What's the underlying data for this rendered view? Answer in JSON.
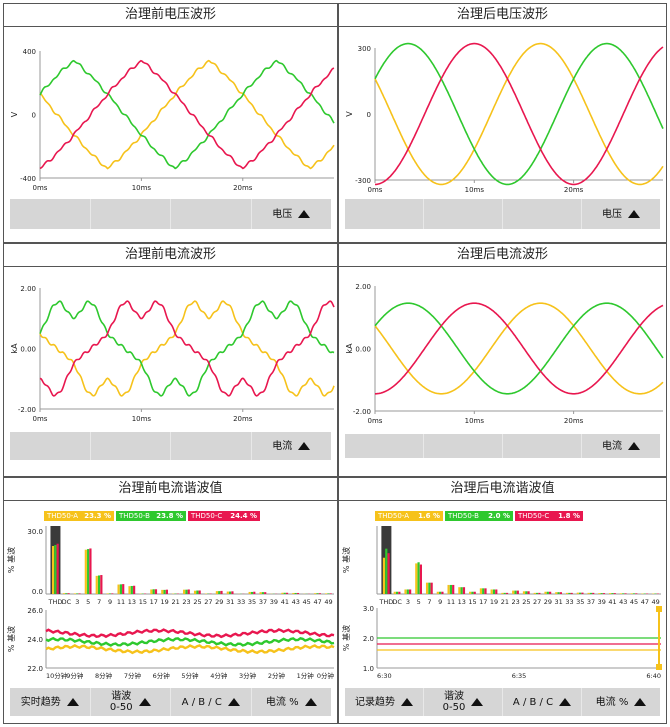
{
  "colors": {
    "phase_a": "#f6c21b",
    "phase_b": "#2ec82e",
    "phase_c": "#e8174f",
    "bar_bg": "#d6d6d6"
  },
  "panels": {
    "v_before": {
      "title": "治理前电压波形",
      "y_label": "V",
      "y_ticks": [
        "400",
        "0",
        "-400"
      ],
      "x_ticks": [
        "0ms",
        "10ms",
        "20ms"
      ],
      "button": "电压"
    },
    "v_after": {
      "title": "治理后电压波形",
      "y_label": "V",
      "y_ticks": [
        "300",
        "0",
        "-300"
      ],
      "x_ticks": [
        "0ms",
        "10ms",
        "20ms"
      ],
      "button": "电压"
    },
    "i_before": {
      "title": "治理前电流波形",
      "y_label": "kA",
      "y_ticks": [
        "2.00",
        "0.00",
        "-2.00"
      ],
      "x_ticks": [
        "0ms",
        "10ms",
        "20ms"
      ],
      "button": "电流"
    },
    "i_after": {
      "title": "治理后电流波形",
      "y_label": "kA",
      "y_ticks": [
        "2.00",
        "0.00",
        "-2.00"
      ],
      "x_ticks": [
        "0ms",
        "10ms",
        "20ms"
      ],
      "button": "电流"
    },
    "h_before": {
      "title": "治理前电流谐波值",
      "badges": [
        {
          "label": "THD50-A",
          "value": "23.3",
          "unit": "%"
        },
        {
          "label": "THD50-B",
          "value": "23.8",
          "unit": "%"
        },
        {
          "label": "THD50-C",
          "value": "24.4",
          "unit": "%"
        }
      ],
      "y_label": "% 基波",
      "y_tick_top": "30.0",
      "y_tick_bottom": "0.0",
      "harmonic_labels": [
        "THD",
        "DC",
        "3",
        "5",
        "7",
        "9",
        "11",
        "13",
        "15",
        "17",
        "19",
        "21",
        "23",
        "25",
        "27",
        "29",
        "31",
        "33",
        "35",
        "37",
        "39",
        "41",
        "43",
        "45",
        "47",
        "49"
      ],
      "trend_y_label": "% 基波",
      "trend_y_ticks": [
        "26.0",
        "24.0",
        "22.0"
      ],
      "trend_x_ticks": [
        "10分钟",
        "9分钟",
        "8分钟",
        "7分钟",
        "6分钟",
        "5分钟",
        "4分钟",
        "3分钟",
        "2分钟",
        "1分钟",
        "0分钟"
      ],
      "buttons": [
        {
          "label": "实时趋势",
          "line2": ""
        },
        {
          "label": "谐波",
          "line2": "0-50"
        },
        {
          "label": "A / B / C",
          "line2": ""
        },
        {
          "label": "电流 %",
          "line2": ""
        }
      ]
    },
    "h_after": {
      "title": "治理后电流谐波值",
      "badges": [
        {
          "label": "THD50-A",
          "value": "1.6",
          "unit": "%"
        },
        {
          "label": "THD50-B",
          "value": "2.0",
          "unit": "%"
        },
        {
          "label": "THD50-C",
          "value": "1.8",
          "unit": "%"
        }
      ],
      "y_label": "% 基波",
      "harmonic_labels": [
        "THD",
        "DC",
        "3",
        "5",
        "7",
        "9",
        "11",
        "13",
        "15",
        "17",
        "19",
        "21",
        "23",
        "25",
        "27",
        "29",
        "31",
        "33",
        "35",
        "37",
        "39",
        "41",
        "43",
        "45",
        "47",
        "49"
      ],
      "trend_y_label": "% 基波",
      "trend_y_ticks": [
        "3.0",
        "2.0",
        "1.0"
      ],
      "trend_x_ticks": [
        "6:30",
        "6:35",
        "6:40"
      ],
      "buttons": [
        {
          "label": "记录趋势",
          "line2": ""
        },
        {
          "label": "谐波",
          "line2": "0-50"
        },
        {
          "label": "A / B / C",
          "line2": ""
        },
        {
          "label": "电流 %",
          "line2": ""
        }
      ]
    }
  },
  "chart_data": [
    {
      "type": "line",
      "title": "治理前电压波形",
      "ylabel": "V",
      "ylim": [
        -400,
        400
      ],
      "x_unit": "ms",
      "xlim": [
        0,
        30
      ],
      "series": [
        {
          "name": "A",
          "amplitude": 340,
          "phase_deg": 150
        },
        {
          "name": "B",
          "amplitude": 340,
          "phase_deg": 30
        },
        {
          "name": "C",
          "amplitude": 340,
          "phase_deg": 270
        }
      ],
      "note_shape": "trapezoidal distorted"
    },
    {
      "type": "line",
      "title": "治理后电压波形",
      "ylabel": "V",
      "ylim": [
        -300,
        300
      ],
      "x_unit": "ms",
      "xlim": [
        0,
        30
      ],
      "series": [
        {
          "name": "A",
          "amplitude": 320,
          "phase_deg": 150
        },
        {
          "name": "B",
          "amplitude": 320,
          "phase_deg": 30
        },
        {
          "name": "C",
          "amplitude": 320,
          "phase_deg": 270
        }
      ]
    },
    {
      "type": "line",
      "title": "治理前电流波形",
      "ylabel": "kA",
      "ylim": [
        -2,
        2
      ],
      "x_unit": "ms",
      "xlim": [
        0,
        30
      ],
      "series": [
        {
          "name": "A",
          "amplitude": 1.4,
          "phase_deg": 150
        },
        {
          "name": "B",
          "amplitude": 1.4,
          "phase_deg": 30
        },
        {
          "name": "C",
          "amplitude": 1.4,
          "phase_deg": 270
        }
      ]
    },
    {
      "type": "line",
      "title": "治理后电流波形",
      "ylabel": "kA",
      "ylim": [
        -2,
        2
      ],
      "x_unit": "ms",
      "xlim": [
        0,
        30
      ],
      "series": [
        {
          "name": "A",
          "amplitude": 1.45,
          "phase_deg": 150
        },
        {
          "name": "B",
          "amplitude": 1.45,
          "phase_deg": 30
        },
        {
          "name": "C",
          "amplitude": 1.45,
          "phase_deg": 270
        }
      ]
    },
    {
      "type": "bar",
      "title": "治理前电流谐波值",
      "ylabel": "% 基波",
      "ylim": [
        0,
        33
      ],
      "categories": [
        "THD",
        "DC",
        "3",
        "5",
        "7",
        "9",
        "11",
        "13",
        "15",
        "17",
        "19",
        "21",
        "23",
        "25",
        "27",
        "29",
        "31",
        "33",
        "35",
        "37",
        "39",
        "41",
        "43",
        "45",
        "47",
        "49"
      ],
      "series": [
        {
          "name": "A",
          "values": [
            23.3,
            0.4,
            0.3,
            21.5,
            8.8,
            0.3,
            4.6,
            3.8,
            0.2,
            2.2,
            2.0,
            0.2,
            2.1,
            1.6,
            0.2,
            1.4,
            1.2,
            0.1,
            1.0,
            0.9,
            0.1,
            0.6,
            0.5,
            0.1,
            0.4,
            0.3
          ]
        },
        {
          "name": "B",
          "values": [
            23.8,
            0.4,
            0.3,
            21.8,
            9.0,
            0.3,
            4.7,
            3.9,
            0.2,
            2.3,
            2.0,
            0.2,
            2.1,
            1.7,
            0.2,
            1.4,
            1.2,
            0.1,
            1.0,
            0.9,
            0.1,
            0.6,
            0.5,
            0.1,
            0.4,
            0.3
          ]
        },
        {
          "name": "C",
          "values": [
            24.4,
            0.4,
            0.3,
            22.1,
            9.2,
            0.3,
            4.8,
            4.0,
            0.2,
            2.3,
            2.1,
            0.2,
            2.2,
            1.7,
            0.2,
            1.5,
            1.3,
            0.1,
            1.1,
            0.9,
            0.1,
            0.6,
            0.5,
            0.1,
            0.4,
            0.3
          ]
        }
      ]
    },
    {
      "type": "line",
      "title": "治理前电流谐波趋势",
      "ylabel": "% 基波",
      "ylim": [
        22,
        26
      ],
      "series": [
        {
          "name": "A",
          "mean": 23.3
        },
        {
          "name": "B",
          "mean": 23.8
        },
        {
          "name": "C",
          "mean": 24.4
        }
      ]
    },
    {
      "type": "bar",
      "title": "治理后电流谐波值",
      "ylabel": "% 基波",
      "ylim": [
        0,
        3
      ],
      "categories": [
        "THD",
        "DC",
        "3",
        "5",
        "7",
        "9",
        "11",
        "13",
        "15",
        "17",
        "19",
        "21",
        "23",
        "25",
        "27",
        "29",
        "31",
        "33",
        "35",
        "37",
        "39",
        "41",
        "43",
        "45",
        "47",
        "49"
      ],
      "series": [
        {
          "name": "A",
          "values": [
            1.6,
            0.1,
            0.2,
            1.35,
            0.5,
            0.1,
            0.4,
            0.3,
            0.1,
            0.25,
            0.2,
            0.05,
            0.15,
            0.12,
            0.05,
            0.1,
            0.08,
            0.05,
            0.06,
            0.05,
            0.04,
            0.04,
            0.03,
            0.03,
            0.02,
            0.02
          ]
        },
        {
          "name": "B",
          "values": [
            2.0,
            0.1,
            0.2,
            1.4,
            0.5,
            0.1,
            0.4,
            0.3,
            0.1,
            0.25,
            0.2,
            0.05,
            0.15,
            0.12,
            0.05,
            0.1,
            0.08,
            0.05,
            0.06,
            0.05,
            0.04,
            0.04,
            0.03,
            0.03,
            0.02,
            0.02
          ]
        },
        {
          "name": "C",
          "values": [
            1.8,
            0.1,
            0.2,
            1.3,
            0.5,
            0.1,
            0.4,
            0.3,
            0.1,
            0.25,
            0.2,
            0.05,
            0.15,
            0.12,
            0.05,
            0.1,
            0.08,
            0.05,
            0.06,
            0.05,
            0.04,
            0.04,
            0.03,
            0.03,
            0.02,
            0.02
          ]
        }
      ]
    },
    {
      "type": "line",
      "title": "治理后电流谐波趋势",
      "ylabel": "% 基波",
      "ylim": [
        1,
        3
      ],
      "series": [
        {
          "name": "A",
          "mean": 1.6
        },
        {
          "name": "B",
          "mean": 2.0
        },
        {
          "name": "C",
          "mean": 1.8
        }
      ]
    }
  ]
}
